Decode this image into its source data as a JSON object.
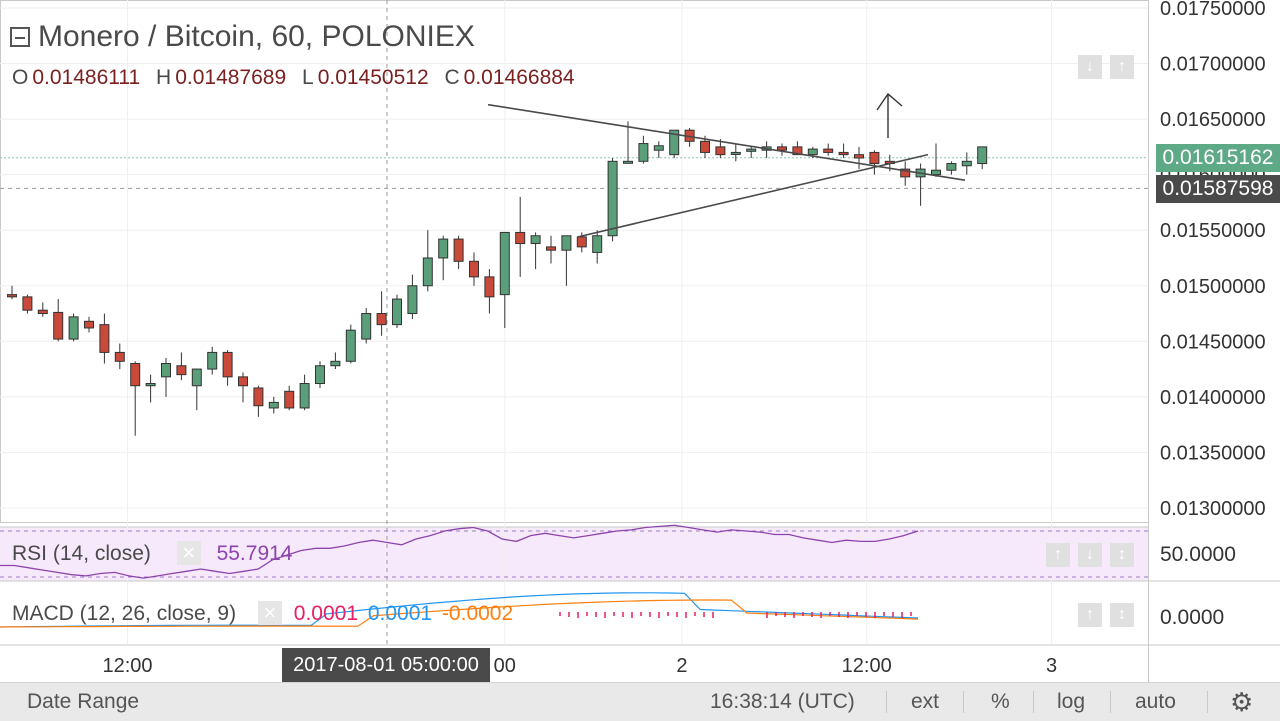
{
  "header": {
    "title": "Monero / Bitcoin, 60, POLONIEX",
    "ohlc": [
      {
        "key": "O",
        "value": "0.01486111"
      },
      {
        "key": "H",
        "value": "0.01487689"
      },
      {
        "key": "L",
        "value": "0.01450512"
      },
      {
        "key": "C",
        "value": "0.01466884"
      }
    ]
  },
  "price_labels": {
    "last_price": "0.01615162",
    "crosshair_price": "0.01587598"
  },
  "colors": {
    "up": "#5a9e7a",
    "down": "#c94a3a",
    "rsi": "#8e44ad",
    "macd": "#2196f3",
    "signal": "#ff7f0e",
    "histogram": "#e91e63",
    "last_price_bg": "#5ea986",
    "crosshair_bg": "#4a4a4a"
  },
  "rsi": {
    "label": "RSI (14, close)",
    "value": "55.7914",
    "axis_label": "50.0000"
  },
  "macd": {
    "label": "MACD (12, 26, close, 9)",
    "hist": "0.0001",
    "macd": "0.0001",
    "signal": "-0.0002",
    "axis_label": "0.0000"
  },
  "time_tooltip": "2017-08-01 05:00:00",
  "bottom_bar": {
    "date_range": "Date Range",
    "time": "16:38:14 (UTC)",
    "ext": "ext",
    "percent": "%",
    "log": "log",
    "auto": "auto",
    "settings_icon": "gear-icon"
  },
  "chart_data": {
    "type": "candlestick",
    "title": "Monero / Bitcoin, 60, POLONIEX",
    "ylim": [
      0.0128,
      0.0176
    ],
    "y_ticks": [
      "0.01750000",
      "0.01700000",
      "0.01650000",
      "0.01600000",
      "0.01550000",
      "0.01500000",
      "0.01450000",
      "0.01400000",
      "0.01350000",
      "0.01300000"
    ],
    "x_ticks": [
      {
        "label": "12:00",
        "i": 7.5
      },
      {
        "label": "00",
        "i": 32
      },
      {
        "label": "2",
        "i": 43.5
      },
      {
        "label": "12:00",
        "i": 55.5
      },
      {
        "label": "3",
        "i": 67.5
      }
    ],
    "candles": [
      [
        0.01492,
        0.015,
        0.01488,
        0.0149
      ],
      [
        0.0149,
        0.01492,
        0.01475,
        0.01478
      ],
      [
        0.01478,
        0.01485,
        0.01472,
        0.01475
      ],
      [
        0.01476,
        0.01488,
        0.0145,
        0.01452
      ],
      [
        0.01452,
        0.01475,
        0.0145,
        0.01472
      ],
      [
        0.01468,
        0.01472,
        0.01458,
        0.01462
      ],
      [
        0.01465,
        0.01475,
        0.0143,
        0.0144
      ],
      [
        0.0144,
        0.01448,
        0.01425,
        0.01432
      ],
      [
        0.0143,
        0.01432,
        0.01365,
        0.0141
      ],
      [
        0.0141,
        0.0142,
        0.01395,
        0.01412
      ],
      [
        0.01418,
        0.01435,
        0.014,
        0.0143
      ],
      [
        0.01428,
        0.0144,
        0.01415,
        0.0142
      ],
      [
        0.0141,
        0.01425,
        0.01388,
        0.01425
      ],
      [
        0.01425,
        0.01445,
        0.0142,
        0.0144
      ],
      [
        0.0144,
        0.01442,
        0.0141,
        0.01418
      ],
      [
        0.01418,
        0.01422,
        0.01395,
        0.0141
      ],
      [
        0.01408,
        0.0141,
        0.01382,
        0.01392
      ],
      [
        0.0139,
        0.014,
        0.01385,
        0.01395
      ],
      [
        0.01405,
        0.0141,
        0.01388,
        0.0139
      ],
      [
        0.0139,
        0.0142,
        0.01388,
        0.01412
      ],
      [
        0.01412,
        0.01432,
        0.01408,
        0.01428
      ],
      [
        0.01428,
        0.0144,
        0.01425,
        0.01432
      ],
      [
        0.01432,
        0.01465,
        0.0143,
        0.0146
      ],
      [
        0.01452,
        0.0148,
        0.01448,
        0.01475
      ],
      [
        0.01475,
        0.01495,
        0.01455,
        0.01465
      ],
      [
        0.01465,
        0.01492,
        0.01462,
        0.01488
      ],
      [
        0.01475,
        0.0151,
        0.0147,
        0.015
      ],
      [
        0.015,
        0.0155,
        0.01495,
        0.01525
      ],
      [
        0.01525,
        0.01545,
        0.01505,
        0.01542
      ],
      [
        0.01542,
        0.01545,
        0.01515,
        0.01522
      ],
      [
        0.01522,
        0.0153,
        0.015,
        0.01508
      ],
      [
        0.01508,
        0.01515,
        0.01475,
        0.0149
      ],
      [
        0.01492,
        0.01548,
        0.01462,
        0.01548
      ],
      [
        0.01548,
        0.0158,
        0.01508,
        0.01538
      ],
      [
        0.01538,
        0.01548,
        0.01515,
        0.01545
      ],
      [
        0.01535,
        0.01545,
        0.0152,
        0.01532
      ],
      [
        0.01532,
        0.01545,
        0.015,
        0.01545
      ],
      [
        0.01544,
        0.01548,
        0.0153,
        0.01535
      ],
      [
        0.0153,
        0.0155,
        0.0152,
        0.01545
      ],
      [
        0.01545,
        0.01615,
        0.0154,
        0.01612
      ],
      [
        0.01612,
        0.01648,
        0.0161,
        0.01612
      ],
      [
        0.01612,
        0.01635,
        0.0161,
        0.01628
      ],
      [
        0.01622,
        0.0163,
        0.01615,
        0.01626
      ],
      [
        0.01618,
        0.0164,
        0.01615,
        0.0164
      ],
      [
        0.0164,
        0.01642,
        0.01625,
        0.0163
      ],
      [
        0.0163,
        0.01635,
        0.01615,
        0.0162
      ],
      [
        0.01625,
        0.01632,
        0.01615,
        0.01618
      ],
      [
        0.0162,
        0.01628,
        0.01612,
        0.0162
      ],
      [
        0.01621,
        0.01625,
        0.01615,
        0.01623
      ],
      [
        0.01622,
        0.0163,
        0.01615,
        0.01625
      ],
      [
        0.01625,
        0.01628,
        0.01617,
        0.01622
      ],
      [
        0.01625,
        0.0163,
        0.0162,
        0.01618
      ],
      [
        0.01618,
        0.01625,
        0.01615,
        0.01623
      ],
      [
        0.01623,
        0.01628,
        0.01617,
        0.0162
      ],
      [
        0.0162,
        0.01628,
        0.01615,
        0.01618
      ],
      [
        0.01618,
        0.01625,
        0.01605,
        0.01615
      ],
      [
        0.0162,
        0.01622,
        0.016,
        0.0161
      ],
      [
        0.01612,
        0.01618,
        0.01603,
        0.0161
      ],
      [
        0.01605,
        0.01612,
        0.0159,
        0.01598
      ],
      [
        0.01598,
        0.0161,
        0.01572,
        0.01605
      ],
      [
        0.016,
        0.01628,
        0.01598,
        0.01604
      ],
      [
        0.01604,
        0.01612,
        0.016,
        0.0161
      ],
      [
        0.01608,
        0.0162,
        0.016,
        0.01612
      ],
      [
        0.0161,
        0.01625,
        0.01605,
        0.01625
      ]
    ]
  }
}
